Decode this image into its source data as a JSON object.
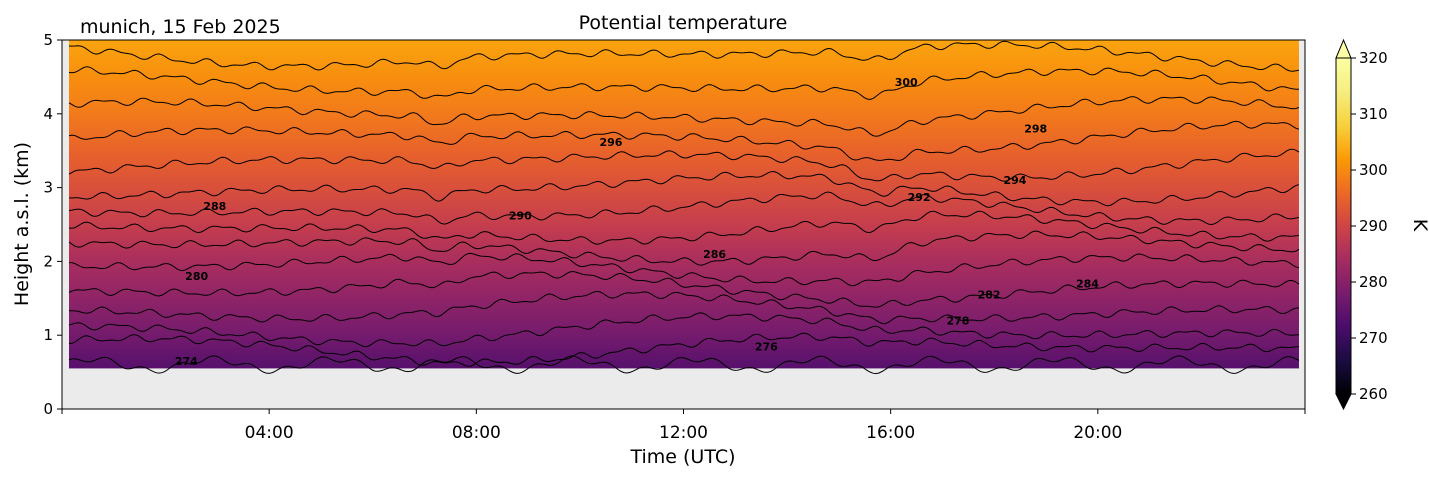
{
  "chart_data": {
    "type": "contour",
    "title": "Potential temperature",
    "subtitle": "munich, 15 Feb 2025",
    "xlabel": "Time (UTC)",
    "ylabel": "Height a.s.l. (km)",
    "x_tick_labels": [
      "04:00",
      "08:00",
      "12:00",
      "16:00",
      "20:00"
    ],
    "x_tick_hours": [
      4,
      8,
      12,
      16,
      20
    ],
    "xlim_hours": [
      0,
      24
    ],
    "ylim": [
      0,
      5
    ],
    "y_ticks": [
      0,
      1,
      2,
      3,
      4,
      5
    ],
    "data_bottom_km": 0.55,
    "colorbar": {
      "label": "K",
      "range": [
        260,
        320
      ],
      "ticks": [
        260,
        270,
        280,
        290,
        300,
        310,
        320
      ],
      "extend": "both",
      "colormap": "inferno"
    },
    "contour_levels": [
      272,
      274,
      276,
      278,
      280,
      282,
      284,
      286,
      288,
      290,
      292,
      294,
      296,
      298,
      300,
      302
    ],
    "contour_labels": [
      {
        "text": "274",
        "hour": 2.4,
        "km": 0.65
      },
      {
        "text": "276",
        "hour": 13.6,
        "km": 0.85
      },
      {
        "text": "278",
        "hour": 17.3,
        "km": 1.2
      },
      {
        "text": "280",
        "hour": 2.6,
        "km": 1.8
      },
      {
        "text": "282",
        "hour": 17.9,
        "km": 1.55
      },
      {
        "text": "284",
        "hour": 19.8,
        "km": 1.7
      },
      {
        "text": "286",
        "hour": 12.6,
        "km": 2.1
      },
      {
        "text": "288",
        "hour": 2.95,
        "km": 2.75
      },
      {
        "text": "290",
        "hour": 8.85,
        "km": 2.62
      },
      {
        "text": "292",
        "hour": 16.55,
        "km": 2.87
      },
      {
        "text": "294",
        "hour": 18.4,
        "km": 3.1
      },
      {
        "text": "296",
        "hour": 10.6,
        "km": 3.62
      },
      {
        "text": "298",
        "hour": 18.8,
        "km": 3.8
      },
      {
        "text": "300",
        "hour": 16.3,
        "km": 4.43
      }
    ]
  }
}
